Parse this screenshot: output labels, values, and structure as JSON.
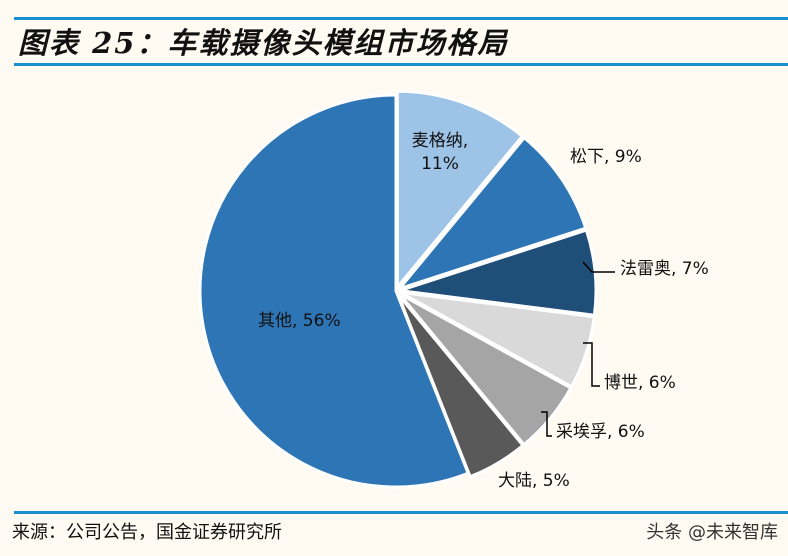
{
  "title": "图表 25：车载摄像头模组市场格局",
  "source": "来源：公司公告，国金证券研究所",
  "watermark": "头条 @未来智库",
  "chart_data": {
    "type": "pie",
    "title": "图表 25：车载摄像头模组市场格局",
    "start": "12 o'clock, clockwise",
    "slices": [
      {
        "name": "麦格纳",
        "value": 11,
        "label": "麦格纳,",
        "label2": "11%",
        "color": "#9dc3e6"
      },
      {
        "name": "松下",
        "value": 9,
        "label": "松下, 9%",
        "color": "#2e75b6"
      },
      {
        "name": "法雷奥",
        "value": 7,
        "label": "法雷奥, 7%",
        "color": "#1f4e79"
      },
      {
        "name": "博世",
        "value": 6,
        "label": "博世, 6%",
        "color": "#d9d9d9"
      },
      {
        "name": "采埃孚",
        "value": 6,
        "label": "采埃孚, 6%",
        "color": "#a5a5a5"
      },
      {
        "name": "大陆",
        "value": 5,
        "label": "大陆, 5%",
        "color": "#595959"
      },
      {
        "name": "其他",
        "value": 56,
        "label": "其他, 56%",
        "color": "#2e75b6"
      }
    ]
  }
}
